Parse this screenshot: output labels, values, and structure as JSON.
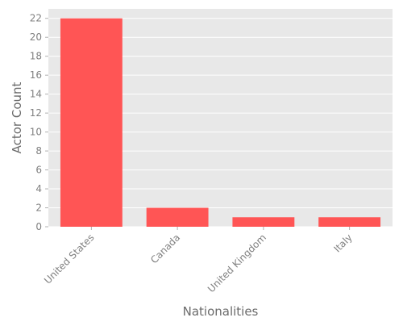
{
  "chart_data": {
    "type": "bar",
    "title": "",
    "xlabel": "Nationalities",
    "ylabel": "Actor Count",
    "categories": [
      "United States",
      "Canada",
      "United Kingdom",
      "Italy"
    ],
    "values": [
      22,
      2,
      1,
      1
    ],
    "ylim": [
      0,
      23
    ],
    "yticks": [
      0,
      2,
      4,
      6,
      8,
      10,
      12,
      14,
      16,
      18,
      20,
      22
    ],
    "grid": true,
    "legend": "none",
    "colors": {
      "bar": "#ff5555",
      "plot_background": "#e8e8e8",
      "gridline": "#ffffff",
      "tick_text": "#808080",
      "axis_title": "#6b6b6b"
    }
  }
}
